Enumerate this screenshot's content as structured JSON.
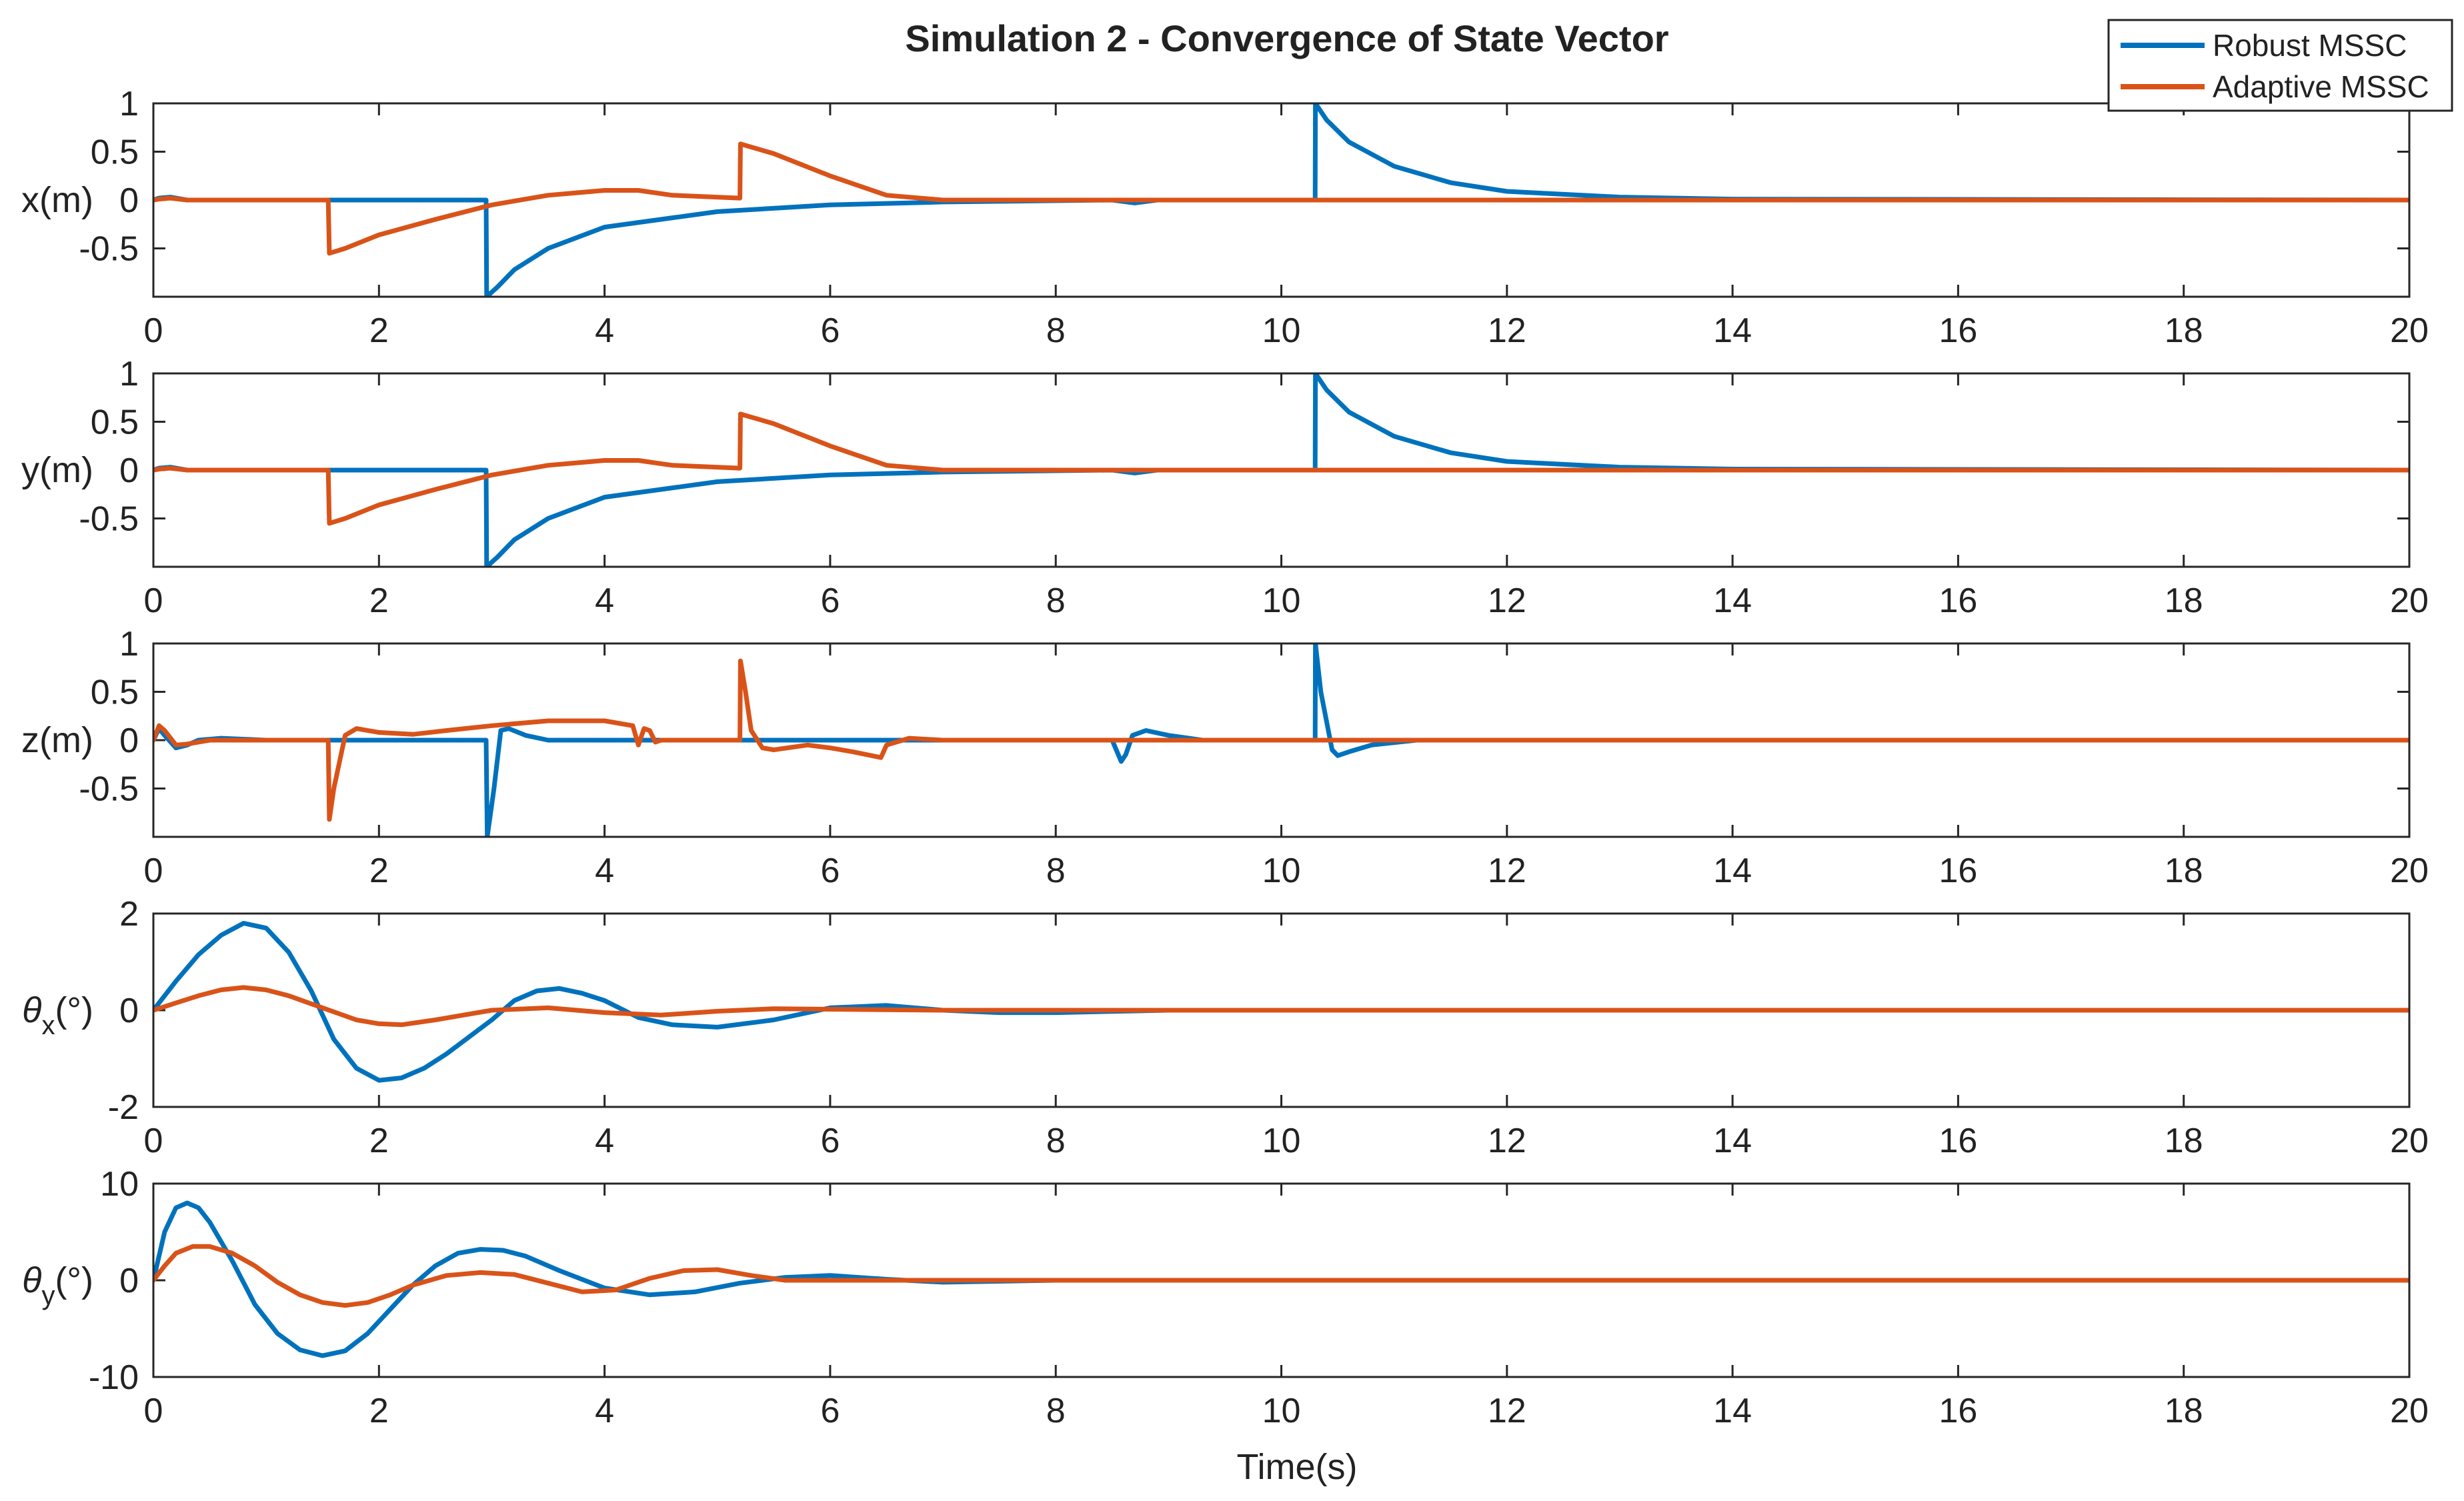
{
  "chart_data": {
    "type": "line",
    "title": "Simulation 2 - Convergence of State Vector",
    "xlabel": "Time(s)",
    "xlim": [
      0,
      20
    ],
    "xticks": [
      "0",
      "2",
      "4",
      "6",
      "8",
      "10",
      "12",
      "14",
      "16",
      "18",
      "20"
    ],
    "legend": {
      "placement": "top-right",
      "entries": [
        {
          "name": "Robust MSSC",
          "color": "#0072BD"
        },
        {
          "name": "Adaptive MSSC",
          "color": "#D95319"
        }
      ]
    },
    "subplots": [
      {
        "id": "x",
        "ylabel": "x(m)",
        "ylim": [
          -1,
          1
        ],
        "yticks": [
          {
            "v": 1,
            "t": "1"
          },
          {
            "v": 0.5,
            "t": "0.5"
          },
          {
            "v": 0,
            "t": "0"
          },
          {
            "v": -0.5,
            "t": "-0.5"
          }
        ],
        "series": [
          {
            "name": "Robust MSSC",
            "x": [
              0,
              0.05,
              0.15,
              0.3,
              2.95,
              2.955,
              3.05,
              3.2,
              3.5,
              4,
              5,
              6,
              7,
              8.5,
              8.7,
              8.9,
              10.3,
              10.302,
              10.4,
              10.6,
              11,
              11.5,
              12,
              13,
              14,
              20
            ],
            "y": [
              0,
              0.02,
              0.03,
              0,
              0,
              -1,
              -0.9,
              -0.72,
              -0.5,
              -0.28,
              -0.12,
              -0.05,
              -0.02,
              0,
              -0.03,
              0,
              0,
              1,
              0.83,
              0.6,
              0.35,
              0.18,
              0.09,
              0.03,
              0.01,
              0
            ]
          },
          {
            "name": "Adaptive MSSC",
            "x": [
              0,
              0.05,
              0.15,
              0.3,
              1.55,
              1.56,
              1.7,
              2,
              2.5,
              3,
              3.5,
              4,
              4.3,
              4.6,
              5.2,
              5.205,
              5.5,
              6,
              6.5,
              7,
              8,
              20
            ],
            "y": [
              0,
              0.01,
              0.02,
              0,
              0,
              -0.55,
              -0.5,
              -0.36,
              -0.2,
              -0.05,
              0.05,
              0.1,
              0.1,
              0.05,
              0.02,
              0.58,
              0.48,
              0.25,
              0.05,
              0,
              0,
              0
            ]
          }
        ]
      },
      {
        "id": "y",
        "ylabel": "y(m)",
        "ylim": [
          -1,
          1
        ],
        "yticks": [
          {
            "v": 1,
            "t": "1"
          },
          {
            "v": 0.5,
            "t": "0.5"
          },
          {
            "v": 0,
            "t": "0"
          },
          {
            "v": -0.5,
            "t": "-0.5"
          }
        ],
        "series": [
          {
            "name": "Robust MSSC",
            "x": [
              0,
              0.05,
              0.15,
              0.3,
              2.95,
              2.955,
              3.05,
              3.2,
              3.5,
              4,
              5,
              6,
              7,
              8.5,
              8.7,
              8.9,
              10.3,
              10.302,
              10.4,
              10.6,
              11,
              11.5,
              12,
              13,
              14,
              20
            ],
            "y": [
              0,
              0.02,
              0.03,
              0,
              0,
              -1,
              -0.9,
              -0.72,
              -0.5,
              -0.28,
              -0.12,
              -0.05,
              -0.02,
              0,
              -0.03,
              0,
              0,
              1,
              0.83,
              0.6,
              0.35,
              0.18,
              0.09,
              0.03,
              0.01,
              0
            ]
          },
          {
            "name": "Adaptive MSSC",
            "x": [
              0,
              0.05,
              0.15,
              0.3,
              1.55,
              1.56,
              1.7,
              2,
              2.5,
              3,
              3.5,
              4,
              4.3,
              4.6,
              5.2,
              5.205,
              5.5,
              6,
              6.5,
              7,
              8,
              20
            ],
            "y": [
              0,
              0.01,
              0.02,
              0,
              0,
              -0.55,
              -0.5,
              -0.36,
              -0.2,
              -0.05,
              0.05,
              0.1,
              0.1,
              0.05,
              0.02,
              0.58,
              0.48,
              0.25,
              0.05,
              0,
              0,
              0
            ]
          }
        ]
      },
      {
        "id": "z",
        "ylabel": "z(m)",
        "ylim": [
          -1,
          1
        ],
        "yticks": [
          {
            "v": 1,
            "t": "1"
          },
          {
            "v": 0.5,
            "t": "0.5"
          },
          {
            "v": 0,
            "t": "0"
          },
          {
            "v": -0.5,
            "t": "-0.5"
          }
        ],
        "series": [
          {
            "name": "Robust MSSC",
            "x": [
              0,
              0.05,
              0.1,
              0.2,
              0.3,
              0.4,
              0.6,
              1,
              2.95,
              2.96,
              3.02,
              3.08,
              3.15,
              3.3,
              3.5,
              4,
              8.5,
              8.58,
              8.62,
              8.68,
              8.8,
              9,
              9.3,
              10.3,
              10.302,
              10.35,
              10.45,
              10.5,
              10.6,
              10.8,
              11.2,
              20
            ],
            "y": [
              0,
              0.12,
              0.05,
              -0.08,
              -0.05,
              0,
              0.02,
              0,
              0,
              -1,
              -0.5,
              0.1,
              0.12,
              0.05,
              0,
              0,
              0,
              -0.22,
              -0.15,
              0.05,
              0.1,
              0.05,
              0,
              0,
              1,
              0.5,
              -0.1,
              -0.16,
              -0.12,
              -0.05,
              0,
              0
            ]
          },
          {
            "name": "Adaptive MSSC",
            "x": [
              0,
              0.05,
              0.1,
              0.2,
              0.3,
              0.5,
              1,
              1.55,
              1.56,
              1.6,
              1.7,
              1.8,
              2,
              2.3,
              2.6,
              3,
              3.5,
              4,
              4.25,
              4.3,
              4.35,
              4.4,
              4.45,
              4.5,
              5.2,
              5.205,
              5.25,
              5.3,
              5.4,
              5.5,
              5.8,
              6,
              6.2,
              6.45,
              6.5,
              6.7,
              7,
              20
            ],
            "y": [
              0,
              0.15,
              0.1,
              -0.05,
              -0.04,
              0,
              0,
              0,
              -0.82,
              -0.5,
              0.05,
              0.12,
              0.08,
              0.06,
              0.1,
              0.15,
              0.2,
              0.2,
              0.15,
              -0.05,
              0.12,
              0.1,
              -0.02,
              0,
              0,
              0.82,
              0.5,
              0.1,
              -0.08,
              -0.1,
              -0.05,
              -0.08,
              -0.12,
              -0.18,
              -0.05,
              0.02,
              0,
              0
            ]
          }
        ]
      },
      {
        "id": "thx",
        "ylabel": "θx(°)",
        "ylim": [
          -2,
          2
        ],
        "yticks": [
          {
            "v": 2,
            "t": "2"
          },
          {
            "v": 0,
            "t": "0"
          },
          {
            "v": -2,
            "t": "-2"
          }
        ],
        "series": [
          {
            "name": "Robust MSSC",
            "x": [
              0,
              0.2,
              0.4,
              0.6,
              0.8,
              1,
              1.2,
              1.4,
              1.6,
              1.8,
              2,
              2.2,
              2.4,
              2.6,
              2.8,
              3,
              3.2,
              3.4,
              3.6,
              3.8,
              4,
              4.3,
              4.6,
              5,
              5.5,
              6,
              6.5,
              7,
              7.5,
              8,
              9,
              10,
              20
            ],
            "y": [
              0,
              0.6,
              1.15,
              1.55,
              1.8,
              1.7,
              1.2,
              0.4,
              -0.6,
              -1.2,
              -1.45,
              -1.4,
              -1.2,
              -0.9,
              -0.55,
              -0.2,
              0.2,
              0.4,
              0.45,
              0.35,
              0.2,
              -0.15,
              -0.3,
              -0.35,
              -0.2,
              0.05,
              0.1,
              0,
              -0.05,
              -0.05,
              0,
              0,
              0
            ]
          },
          {
            "name": "Adaptive MSSC",
            "x": [
              0,
              0.2,
              0.4,
              0.6,
              0.8,
              1,
              1.2,
              1.5,
              1.8,
              2,
              2.2,
              2.5,
              3,
              3.5,
              4,
              4.5,
              5,
              5.5,
              6,
              7,
              8,
              20
            ],
            "y": [
              0,
              0.15,
              0.3,
              0.42,
              0.47,
              0.42,
              0.3,
              0.05,
              -0.2,
              -0.28,
              -0.3,
              -0.2,
              0,
              0.05,
              -0.05,
              -0.1,
              -0.02,
              0.03,
              0.02,
              0,
              0,
              0
            ]
          }
        ]
      },
      {
        "id": "thy",
        "ylabel": "θy(°)",
        "ylim": [
          -10,
          10
        ],
        "yticks": [
          {
            "v": 10,
            "t": "10"
          },
          {
            "v": 0,
            "t": "0"
          },
          {
            "v": -10,
            "t": "-10"
          }
        ],
        "series": [
          {
            "name": "Robust MSSC",
            "x": [
              0,
              0.1,
              0.2,
              0.3,
              0.4,
              0.5,
              0.7,
              0.9,
              1.1,
              1.3,
              1.5,
              1.7,
              1.9,
              2.1,
              2.3,
              2.5,
              2.7,
              2.9,
              3.1,
              3.3,
              3.6,
              4,
              4.4,
              4.8,
              5.2,
              5.6,
              6,
              6.5,
              7,
              8,
              9,
              20
            ],
            "y": [
              0,
              5,
              7.5,
              8,
              7.5,
              6,
              2,
              -2.5,
              -5.5,
              -7.2,
              -7.8,
              -7.3,
              -5.5,
              -3,
              -0.5,
              1.5,
              2.8,
              3.2,
              3.1,
              2.5,
              1,
              -0.8,
              -1.5,
              -1.2,
              -0.3,
              0.3,
              0.5,
              0.1,
              -0.2,
              0,
              0,
              0
            ]
          },
          {
            "name": "Adaptive MSSC",
            "x": [
              0,
              0.1,
              0.2,
              0.35,
              0.5,
              0.7,
              0.9,
              1.1,
              1.3,
              1.5,
              1.7,
              1.9,
              2.1,
              2.3,
              2.6,
              2.9,
              3.2,
              3.5,
              3.8,
              4.1,
              4.4,
              4.7,
              5,
              5.3,
              5.6,
              6,
              7,
              20
            ],
            "y": [
              0,
              1.5,
              2.8,
              3.5,
              3.5,
              2.8,
              1.5,
              -0.2,
              -1.5,
              -2.3,
              -2.6,
              -2.3,
              -1.5,
              -0.5,
              0.5,
              0.8,
              0.6,
              -0.3,
              -1.2,
              -1,
              0.2,
              1,
              1.1,
              0.5,
              0,
              0,
              0,
              0
            ]
          }
        ]
      }
    ]
  }
}
